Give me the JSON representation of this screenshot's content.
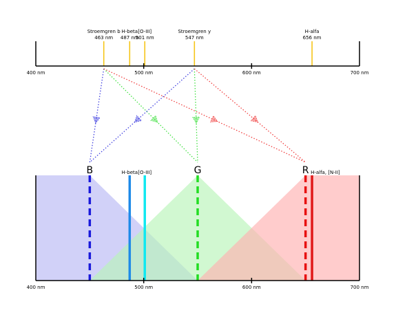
{
  "top_panel": {
    "axis_min": 400,
    "axis_max": 700,
    "tick_values": [
      400,
      500,
      600,
      700
    ],
    "tick_labels": [
      "400 nm",
      "500 nm",
      "600 nm",
      "700 nm"
    ],
    "line_color": "#f5c518",
    "lines": [
      {
        "name": "Stroemgren b",
        "value": 463,
        "label1": "Stroemgren b",
        "label2": "463 nm"
      },
      {
        "name": "H-beta",
        "value": 487,
        "label1": "H-beta",
        "label2": "487 nm"
      },
      {
        "name": "[O-III]",
        "value": 501,
        "label1": "[O-III]",
        "label2": "501 nm"
      },
      {
        "name": "Stroemgren y",
        "value": 547,
        "label1": "Stroemgren y",
        "label2": "547 nm"
      },
      {
        "name": "H-alfa",
        "value": 656,
        "label1": "H-alfa",
        "label2": "656 nm"
      }
    ]
  },
  "bottom_panel": {
    "axis_min": 400,
    "axis_max": 700,
    "tick_values": [
      400,
      500,
      600,
      700
    ],
    "tick_labels": [
      "400 nm",
      "500 nm",
      "600 nm",
      "700 nm"
    ],
    "channels": [
      {
        "key": "B",
        "label": "B",
        "peak": 450,
        "color": "#1a1adb",
        "fill": "#b8b8f5"
      },
      {
        "key": "G",
        "label": "G",
        "peak": 550,
        "color": "#22dd22",
        "fill": "#b8f5b8"
      },
      {
        "key": "R",
        "label": "R",
        "peak": 650,
        "color": "#e81010",
        "fill": "#ffb0b0"
      }
    ],
    "emission_lines": [
      {
        "name": "H-beta",
        "value": 487,
        "color": "#1e8ae8",
        "label": "H-beta"
      },
      {
        "name": "[O-III]",
        "value": 501,
        "color": "#10e8f0",
        "label": "[O-III]"
      },
      {
        "name": "H-alfa, [N-II]",
        "value": 656,
        "color": "#e01818",
        "label": "H-alfa, [N-II]"
      }
    ]
  },
  "mappings": [
    {
      "from": "Stroemgren b",
      "to": "B",
      "color": "#4040e0"
    },
    {
      "from": "Stroemgren b",
      "to": "G",
      "color": "#40e040"
    },
    {
      "from": "Stroemgren b",
      "to": "R",
      "color": "#f04040"
    },
    {
      "from": "Stroemgren y",
      "to": "B",
      "color": "#4040e0"
    },
    {
      "from": "Stroemgren y",
      "to": "G",
      "color": "#40e040"
    },
    {
      "from": "Stroemgren y",
      "to": "R",
      "color": "#f04040"
    }
  ]
}
